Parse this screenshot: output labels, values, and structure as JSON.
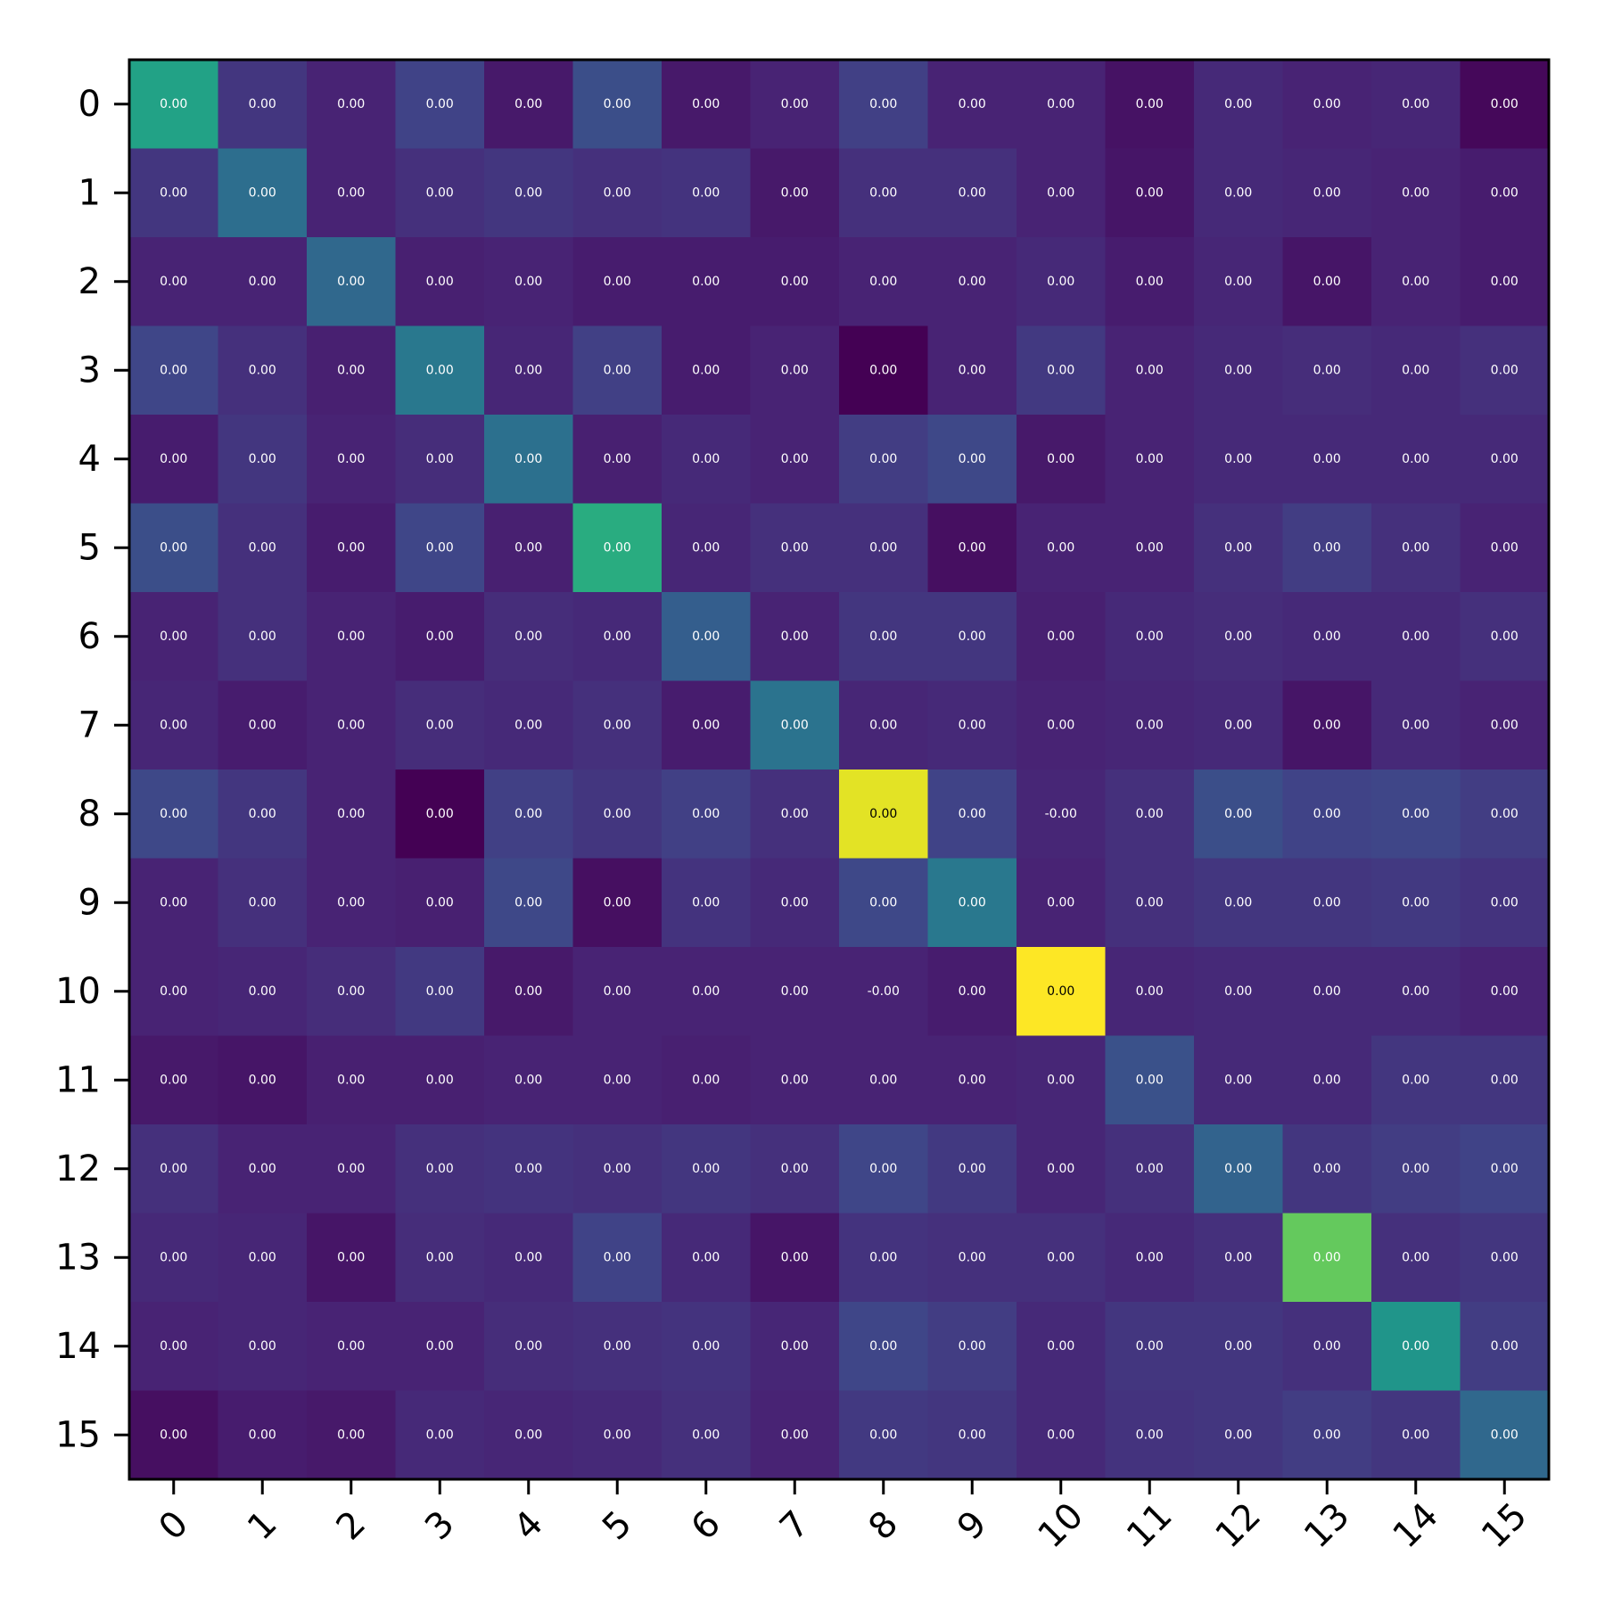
{
  "chart_data": {
    "type": "heatmap",
    "colormap": "viridis",
    "x_tick_labels": [
      "0",
      "1",
      "2",
      "3",
      "4",
      "5",
      "6",
      "7",
      "8",
      "9",
      "10",
      "11",
      "12",
      "13",
      "14",
      "15"
    ],
    "y_tick_labels": [
      "0",
      "1",
      "2",
      "3",
      "4",
      "5",
      "6",
      "7",
      "8",
      "9",
      "10",
      "11",
      "12",
      "13",
      "14",
      "15"
    ],
    "intensity": [
      [
        0.58,
        0.16,
        0.1,
        0.2,
        0.07,
        0.24,
        0.07,
        0.1,
        0.19,
        0.1,
        0.1,
        0.05,
        0.12,
        0.1,
        0.11,
        0.02
      ],
      [
        0.16,
        0.36,
        0.1,
        0.14,
        0.16,
        0.14,
        0.15,
        0.07,
        0.14,
        0.14,
        0.1,
        0.06,
        0.12,
        0.11,
        0.1,
        0.08
      ],
      [
        0.1,
        0.1,
        0.34,
        0.09,
        0.1,
        0.08,
        0.08,
        0.08,
        0.1,
        0.1,
        0.12,
        0.08,
        0.11,
        0.06,
        0.1,
        0.08
      ],
      [
        0.21,
        0.14,
        0.09,
        0.4,
        0.11,
        0.19,
        0.08,
        0.1,
        0.0,
        0.1,
        0.17,
        0.1,
        0.12,
        0.13,
        0.12,
        0.14
      ],
      [
        0.08,
        0.16,
        0.1,
        0.13,
        0.37,
        0.09,
        0.12,
        0.1,
        0.18,
        0.22,
        0.07,
        0.1,
        0.12,
        0.12,
        0.12,
        0.12
      ],
      [
        0.24,
        0.14,
        0.08,
        0.21,
        0.09,
        0.62,
        0.11,
        0.14,
        0.14,
        0.04,
        0.1,
        0.1,
        0.14,
        0.18,
        0.14,
        0.1
      ],
      [
        0.1,
        0.14,
        0.1,
        0.08,
        0.13,
        0.12,
        0.3,
        0.1,
        0.16,
        0.16,
        0.09,
        0.12,
        0.13,
        0.12,
        0.12,
        0.14
      ],
      [
        0.11,
        0.08,
        0.1,
        0.13,
        0.12,
        0.14,
        0.08,
        0.38,
        0.11,
        0.12,
        0.1,
        0.11,
        0.12,
        0.06,
        0.12,
        0.1
      ],
      [
        0.22,
        0.16,
        0.1,
        0.0,
        0.19,
        0.16,
        0.19,
        0.14,
        0.96,
        0.2,
        0.11,
        0.14,
        0.24,
        0.2,
        0.21,
        0.18
      ],
      [
        0.1,
        0.14,
        0.1,
        0.09,
        0.22,
        0.04,
        0.15,
        0.12,
        0.22,
        0.4,
        0.1,
        0.14,
        0.16,
        0.16,
        0.17,
        0.15
      ],
      [
        0.1,
        0.11,
        0.13,
        0.17,
        0.07,
        0.1,
        0.1,
        0.1,
        0.1,
        0.08,
        1.0,
        0.11,
        0.12,
        0.12,
        0.12,
        0.1
      ],
      [
        0.07,
        0.06,
        0.09,
        0.09,
        0.1,
        0.1,
        0.09,
        0.1,
        0.1,
        0.1,
        0.11,
        0.25,
        0.12,
        0.12,
        0.16,
        0.16
      ],
      [
        0.14,
        0.1,
        0.1,
        0.14,
        0.15,
        0.14,
        0.16,
        0.14,
        0.21,
        0.17,
        0.11,
        0.14,
        0.32,
        0.16,
        0.18,
        0.2
      ],
      [
        0.12,
        0.11,
        0.06,
        0.13,
        0.12,
        0.2,
        0.12,
        0.06,
        0.15,
        0.14,
        0.14,
        0.12,
        0.14,
        0.76,
        0.14,
        0.16
      ],
      [
        0.1,
        0.11,
        0.1,
        0.1,
        0.13,
        0.14,
        0.15,
        0.11,
        0.21,
        0.18,
        0.12,
        0.16,
        0.16,
        0.14,
        0.52,
        0.18
      ],
      [
        0.04,
        0.08,
        0.07,
        0.12,
        0.11,
        0.12,
        0.14,
        0.1,
        0.17,
        0.16,
        0.12,
        0.15,
        0.16,
        0.18,
        0.16,
        0.34
      ]
    ],
    "cell_labels": [
      [
        "0.00",
        "0.00",
        "0.00",
        "0.00",
        "0.00",
        "0.00",
        "0.00",
        "0.00",
        "0.00",
        "0.00",
        "0.00",
        "0.00",
        "0.00",
        "0.00",
        "0.00",
        "0.00"
      ],
      [
        "0.00",
        "0.00",
        "0.00",
        "0.00",
        "0.00",
        "0.00",
        "0.00",
        "0.00",
        "0.00",
        "0.00",
        "0.00",
        "0.00",
        "0.00",
        "0.00",
        "0.00",
        "0.00"
      ],
      [
        "0.00",
        "0.00",
        "0.00",
        "0.00",
        "0.00",
        "0.00",
        "0.00",
        "0.00",
        "0.00",
        "0.00",
        "0.00",
        "0.00",
        "0.00",
        "0.00",
        "0.00",
        "0.00"
      ],
      [
        "0.00",
        "0.00",
        "0.00",
        "0.00",
        "0.00",
        "0.00",
        "0.00",
        "0.00",
        "0.00",
        "0.00",
        "0.00",
        "0.00",
        "0.00",
        "0.00",
        "0.00",
        "0.00"
      ],
      [
        "0.00",
        "0.00",
        "0.00",
        "0.00",
        "0.00",
        "0.00",
        "0.00",
        "0.00",
        "0.00",
        "0.00",
        "0.00",
        "0.00",
        "0.00",
        "0.00",
        "0.00",
        "0.00"
      ],
      [
        "0.00",
        "0.00",
        "0.00",
        "0.00",
        "0.00",
        "0.00",
        "0.00",
        "0.00",
        "0.00",
        "0.00",
        "0.00",
        "0.00",
        "0.00",
        "0.00",
        "0.00",
        "0.00"
      ],
      [
        "0.00",
        "0.00",
        "0.00",
        "0.00",
        "0.00",
        "0.00",
        "0.00",
        "0.00",
        "0.00",
        "0.00",
        "0.00",
        "0.00",
        "0.00",
        "0.00",
        "0.00",
        "0.00"
      ],
      [
        "0.00",
        "0.00",
        "0.00",
        "0.00",
        "0.00",
        "0.00",
        "0.00",
        "0.00",
        "0.00",
        "0.00",
        "0.00",
        "0.00",
        "0.00",
        "0.00",
        "0.00",
        "0.00"
      ],
      [
        "0.00",
        "0.00",
        "0.00",
        "0.00",
        "0.00",
        "0.00",
        "0.00",
        "0.00",
        "0.00",
        "0.00",
        "-0.00",
        "0.00",
        "0.00",
        "0.00",
        "0.00",
        "0.00"
      ],
      [
        "0.00",
        "0.00",
        "0.00",
        "0.00",
        "0.00",
        "0.00",
        "0.00",
        "0.00",
        "0.00",
        "0.00",
        "0.00",
        "0.00",
        "0.00",
        "0.00",
        "0.00",
        "0.00"
      ],
      [
        "0.00",
        "0.00",
        "0.00",
        "0.00",
        "0.00",
        "0.00",
        "0.00",
        "0.00",
        "-0.00",
        "0.00",
        "0.00",
        "0.00",
        "0.00",
        "0.00",
        "0.00",
        "0.00"
      ],
      [
        "0.00",
        "0.00",
        "0.00",
        "0.00",
        "0.00",
        "0.00",
        "0.00",
        "0.00",
        "0.00",
        "0.00",
        "0.00",
        "0.00",
        "0.00",
        "0.00",
        "0.00",
        "0.00"
      ],
      [
        "0.00",
        "0.00",
        "0.00",
        "0.00",
        "0.00",
        "0.00",
        "0.00",
        "0.00",
        "0.00",
        "0.00",
        "0.00",
        "0.00",
        "0.00",
        "0.00",
        "0.00",
        "0.00"
      ],
      [
        "0.00",
        "0.00",
        "0.00",
        "0.00",
        "0.00",
        "0.00",
        "0.00",
        "0.00",
        "0.00",
        "0.00",
        "0.00",
        "0.00",
        "0.00",
        "0.00",
        "0.00",
        "0.00"
      ],
      [
        "0.00",
        "0.00",
        "0.00",
        "0.00",
        "0.00",
        "0.00",
        "0.00",
        "0.00",
        "0.00",
        "0.00",
        "0.00",
        "0.00",
        "0.00",
        "0.00",
        "0.00",
        "0.00"
      ],
      [
        "0.00",
        "0.00",
        "0.00",
        "0.00",
        "0.00",
        "0.00",
        "0.00",
        "0.00",
        "0.00",
        "0.00",
        "0.00",
        "0.00",
        "0.00",
        "0.00",
        "0.00",
        "0.00"
      ]
    ],
    "label_color_light": "#ffffff",
    "label_color_dark": "#000000",
    "grid": false,
    "legend": "none"
  }
}
